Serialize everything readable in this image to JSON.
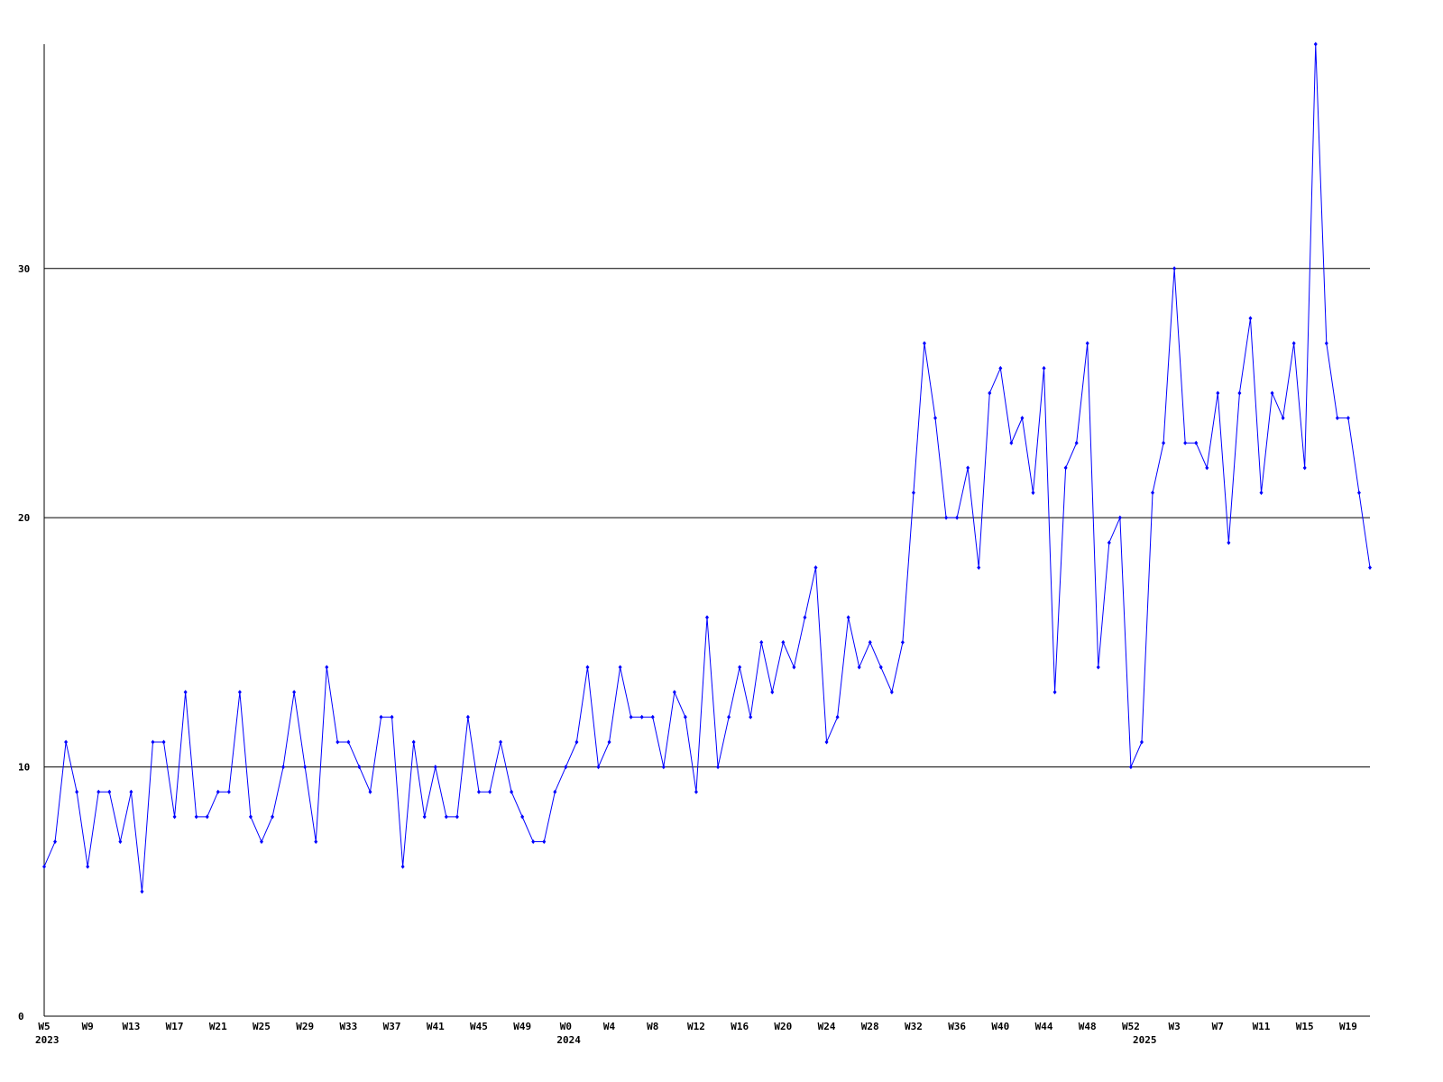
{
  "chart_data": {
    "type": "line",
    "categories": [
      "W5",
      null,
      null,
      null,
      "W9",
      null,
      null,
      null,
      "W13",
      null,
      null,
      null,
      "W17",
      null,
      null,
      null,
      "W21",
      null,
      null,
      null,
      "W25",
      null,
      null,
      null,
      "W29",
      null,
      null,
      null,
      "W33",
      null,
      null,
      null,
      "W37",
      null,
      null,
      null,
      "W41",
      null,
      null,
      null,
      "W45",
      null,
      null,
      null,
      "W49",
      null,
      null,
      null,
      "W0",
      null,
      null,
      null,
      "W4",
      null,
      null,
      null,
      "W8",
      null,
      null,
      null,
      "W12",
      null,
      null,
      null,
      "W16",
      null,
      null,
      null,
      "W20",
      null,
      null,
      null,
      "W24",
      null,
      null,
      null,
      "W28",
      null,
      null,
      null,
      "W32",
      null,
      null,
      null,
      "W36",
      null,
      null,
      null,
      "W40",
      null,
      null,
      null,
      "W44",
      null,
      null,
      null,
      "W48",
      null,
      null,
      null,
      "W52",
      null,
      null,
      null,
      "W3",
      null,
      null,
      null,
      "W7",
      null,
      null,
      null,
      "W11",
      null,
      null,
      null,
      "W15",
      null,
      null,
      null,
      "W19",
      null,
      null
    ],
    "years": [
      "2023",
      null,
      null,
      null,
      null,
      null,
      null,
      null,
      null,
      null,
      null,
      null,
      null,
      null,
      null,
      null,
      null,
      null,
      null,
      null,
      null,
      null,
      null,
      null,
      null,
      null,
      null,
      null,
      null,
      null,
      null,
      null,
      null,
      null,
      null,
      null,
      null,
      null,
      null,
      null,
      null,
      null,
      null,
      null,
      null,
      null,
      null,
      null,
      "2024",
      null,
      null,
      null,
      null,
      null,
      null,
      null,
      null,
      null,
      null,
      null,
      null,
      null,
      null,
      null,
      null,
      null,
      null,
      null,
      null,
      null,
      null,
      null,
      null,
      null,
      null,
      null,
      null,
      null,
      null,
      null,
      null,
      null,
      null,
      null,
      null,
      null,
      null,
      null,
      null,
      null,
      null,
      null,
      null,
      null,
      null,
      null,
      null,
      null,
      null,
      null,
      null,
      "2025",
      null,
      null,
      null,
      null,
      null,
      null,
      null,
      null,
      null,
      null,
      null,
      null,
      null,
      null,
      null,
      null,
      null,
      null,
      null,
      null,
      null
    ],
    "series": [
      {
        "color": "#0000ff",
        "values": [
          6,
          7,
          11,
          9,
          6,
          9,
          9,
          7,
          9,
          5,
          11,
          11,
          8,
          13,
          8,
          8,
          9,
          9,
          13,
          8,
          7,
          8,
          10,
          13,
          10,
          7,
          14,
          11,
          11,
          10,
          9,
          12,
          12,
          6,
          11,
          8,
          10,
          8,
          8,
          12,
          9,
          9,
          11,
          9,
          8,
          7,
          7,
          9,
          10,
          11,
          14,
          10,
          11,
          14,
          12,
          12,
          12,
          10,
          13,
          12,
          9,
          16,
          10,
          12,
          14,
          12,
          15,
          13,
          15,
          14,
          16,
          18,
          11,
          12,
          16,
          14,
          15,
          14,
          13,
          15,
          21,
          27,
          24,
          20,
          20,
          22,
          18,
          25,
          26,
          23,
          24,
          21,
          26,
          13,
          22,
          23,
          27,
          14,
          19,
          20,
          10,
          11,
          21,
          23,
          30,
          23,
          23,
          22,
          25,
          19,
          25,
          28,
          21,
          25,
          24,
          27,
          22,
          39,
          27,
          24,
          24,
          21,
          18
        ]
      }
    ],
    "ylim": [
      0,
      39
    ],
    "yticks": [
      0,
      10,
      20,
      30
    ],
    "grid": true
  }
}
